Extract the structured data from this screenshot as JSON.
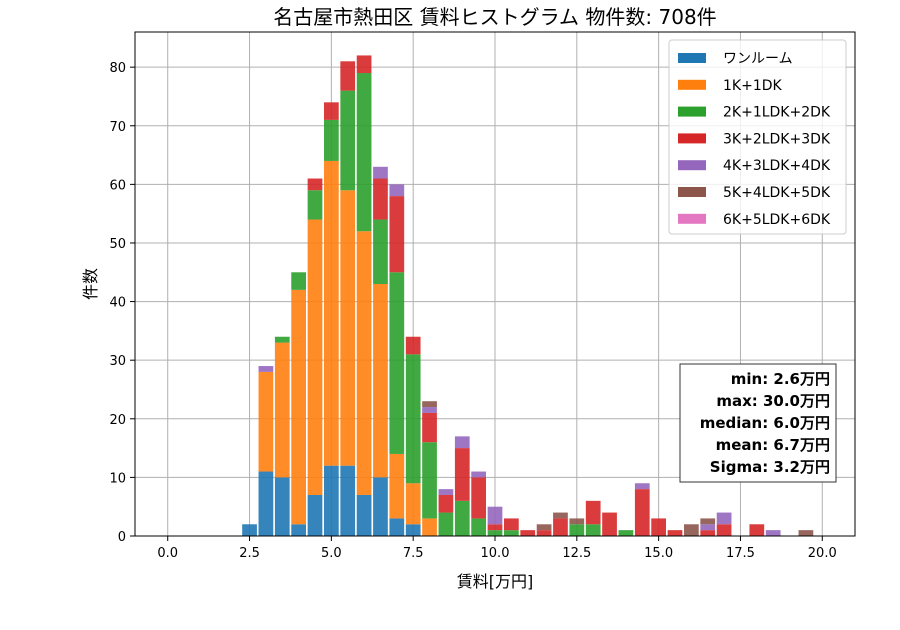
{
  "chart_data": {
    "type": "bar",
    "stacked": true,
    "title": "名古屋市熱田区 賃料ヒストグラム 物件数: 708件",
    "xlabel": "賃料[万円]",
    "ylabel": "件数",
    "xlim": [
      -1.0,
      21.0
    ],
    "ylim": [
      0,
      86
    ],
    "xticks": [
      "0.0",
      "2.5",
      "5.0",
      "7.5",
      "10.0",
      "12.5",
      "15.0",
      "17.5",
      "20.0"
    ],
    "yticks": [
      "0",
      "10",
      "20",
      "30",
      "40",
      "50",
      "60",
      "70",
      "80"
    ],
    "bin_width": 0.5,
    "grid": true,
    "legend_position": "top-right",
    "x": [
      2.5,
      3.0,
      3.5,
      4.0,
      4.5,
      5.0,
      5.5,
      6.0,
      6.5,
      7.0,
      7.5,
      8.0,
      8.5,
      9.0,
      9.5,
      10.0,
      10.5,
      11.0,
      11.5,
      12.0,
      12.5,
      13.0,
      13.5,
      14.0,
      14.5,
      15.0,
      15.5,
      16.0,
      16.5,
      17.0,
      17.5,
      18.0,
      18.5,
      19.0,
      19.5,
      20.0
    ],
    "series": [
      {
        "name": "ワンルーム",
        "color": "#1f77b4",
        "values": [
          2,
          11,
          10,
          2,
          7,
          12,
          12,
          7,
          10,
          3,
          2,
          0,
          0,
          0,
          0,
          0,
          0,
          0,
          0,
          0,
          0,
          0,
          0,
          0,
          0,
          0,
          0,
          0,
          0,
          0,
          0,
          0,
          0,
          0,
          0,
          0
        ]
      },
      {
        "name": "1K+1DK",
        "color": "#ff7f0e",
        "values": [
          0,
          17,
          23,
          40,
          47,
          52,
          47,
          45,
          33,
          11,
          7,
          3,
          0,
          0,
          0,
          0,
          0,
          0,
          0,
          0,
          0,
          0,
          0,
          0,
          0,
          0,
          0,
          0,
          0,
          0,
          0,
          0,
          0,
          0,
          0,
          0
        ]
      },
      {
        "name": "2K+1LDK+2DK",
        "color": "#2ca02c",
        "values": [
          0,
          0,
          1,
          3,
          5,
          7,
          17,
          27,
          11,
          31,
          22,
          13,
          4,
          6,
          3,
          1,
          1,
          0,
          0,
          0,
          2,
          2,
          0,
          1,
          0,
          0,
          0,
          0,
          0,
          0,
          0,
          0,
          0,
          0,
          0,
          0
        ]
      },
      {
        "name": "3K+2LDK+3DK",
        "color": "#d62728",
        "values": [
          0,
          0,
          0,
          0,
          2,
          3,
          5,
          3,
          7,
          13,
          3,
          5,
          3,
          9,
          7,
          1,
          2,
          1,
          1,
          3,
          0,
          4,
          4,
          0,
          8,
          3,
          1,
          0,
          1,
          2,
          0,
          2,
          0,
          0,
          0,
          0
        ]
      },
      {
        "name": "4K+3LDK+4DK",
        "color": "#9467bd",
        "values": [
          0,
          1,
          0,
          0,
          0,
          0,
          0,
          0,
          2,
          2,
          0,
          1,
          1,
          2,
          1,
          3,
          0,
          0,
          0,
          0,
          0,
          0,
          0,
          0,
          1,
          0,
          0,
          0,
          1,
          2,
          0,
          0,
          1,
          0,
          0,
          0
        ]
      },
      {
        "name": "5K+4LDK+5DK",
        "color": "#8c564b",
        "values": [
          0,
          0,
          0,
          0,
          0,
          0,
          0,
          0,
          0,
          0,
          0,
          1,
          0,
          0,
          0,
          0,
          0,
          0,
          1,
          1,
          1,
          0,
          0,
          0,
          0,
          0,
          0,
          2,
          1,
          0,
          0,
          0,
          0,
          0,
          1,
          0
        ]
      },
      {
        "name": "6K+5LDK+6DK",
        "color": "#e377c2",
        "values": [
          0,
          0,
          0,
          0,
          0,
          0,
          0,
          0,
          0,
          0,
          0,
          0,
          0,
          0,
          0,
          0,
          0,
          0,
          0,
          0,
          0,
          0,
          0,
          0,
          0,
          0,
          0,
          0,
          0,
          0,
          0,
          0,
          0,
          0,
          0,
          0
        ]
      }
    ],
    "stats": [
      "min: 2.6万円",
      "max: 30.0万円",
      "median: 6.0万円",
      "mean: 6.7万円",
      "Sigma: 3.2万円"
    ]
  }
}
